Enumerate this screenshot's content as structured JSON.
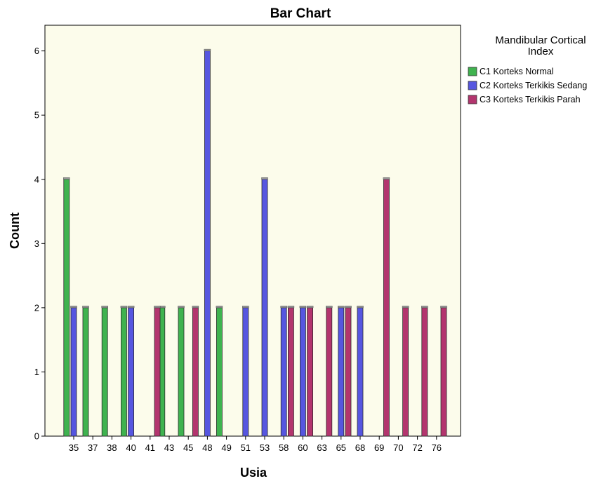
{
  "chart_data": {
    "type": "bar",
    "title": "Bar Chart",
    "xlabel": "Usia",
    "ylabel": "Count",
    "ylim": [
      0,
      6.4
    ],
    "yticks": [
      0,
      1,
      2,
      3,
      4,
      5,
      6
    ],
    "grid": false,
    "legend_position": "right",
    "legend_title_lines": [
      "Mandibular Cortical",
      "Index"
    ],
    "plot_background": "#FCFCEB",
    "categories": [
      "35",
      "37",
      "38",
      "40",
      "41",
      "43",
      "45",
      "48",
      "49",
      "51",
      "53",
      "58",
      "60",
      "63",
      "65",
      "68",
      "69",
      "70",
      "72",
      "76"
    ],
    "series": [
      {
        "name": "C1 Korteks Normal",
        "color": "#3FB34F",
        "values": [
          4,
          2,
          2,
          2,
          0,
          2,
          2,
          0,
          2,
          0,
          0,
          0,
          0,
          0,
          0,
          0,
          0,
          0,
          0,
          0
        ]
      },
      {
        "name": "C2 Korteks Terkikis Sedang",
        "color": "#5656E0",
        "values": [
          2,
          0,
          0,
          2,
          0,
          0,
          0,
          6,
          0,
          2,
          4,
          2,
          2,
          0,
          2,
          2,
          0,
          0,
          0,
          0
        ]
      },
      {
        "name": "C3 Korteks Terkikis Parah",
        "color": "#B3356E",
        "values": [
          0,
          0,
          0,
          0,
          2,
          0,
          2,
          0,
          0,
          0,
          0,
          2,
          2,
          2,
          2,
          0,
          4,
          2,
          2,
          2
        ]
      }
    ]
  }
}
